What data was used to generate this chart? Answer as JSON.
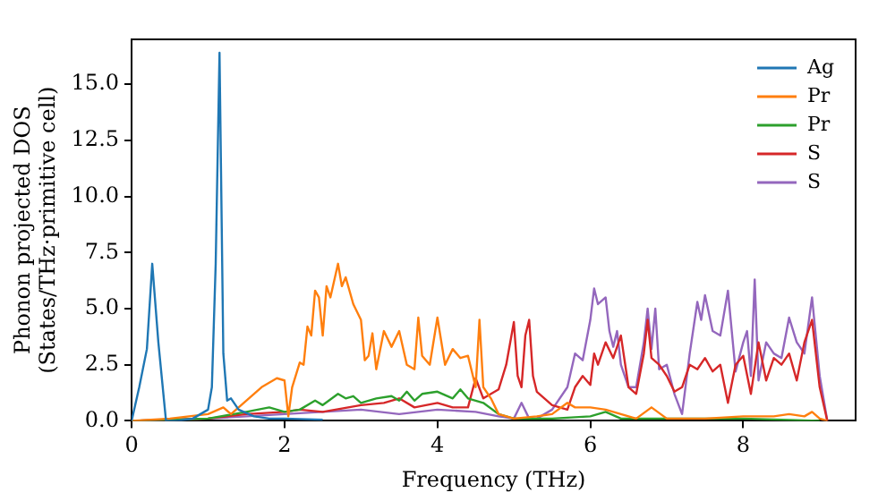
{
  "chart_data": {
    "type": "line",
    "xlabel": "Frequency (THz)",
    "ylabel": "Phonon projected DOS\n(States/THz·primitive cell)",
    "xlim": [
      0,
      9.47
    ],
    "ylim": [
      0,
      17.0
    ],
    "xticks": [
      0,
      2,
      4,
      6,
      8
    ],
    "yticks": [
      {
        "value": 0,
        "label": "0.0"
      },
      {
        "value": 2.5,
        "label": "2.5"
      },
      {
        "value": 5,
        "label": "5.0"
      },
      {
        "value": 7.5,
        "label": "7.5"
      },
      {
        "value": 10,
        "label": "10.0"
      },
      {
        "value": 12.5,
        "label": "12.5"
      },
      {
        "value": 15,
        "label": "15.0"
      }
    ],
    "legend": "top right",
    "grid": false,
    "marker": "none",
    "line_style": "solid",
    "series": [
      {
        "name": "Ag",
        "color": "#1f77b4",
        "x": [
          0,
          0.1,
          0.2,
          0.27,
          0.35,
          0.45,
          0.6,
          0.8,
          1.0,
          1.05,
          1.1,
          1.15,
          1.2,
          1.25,
          1.3,
          1.4,
          1.6,
          1.8,
          2.0,
          2.5
        ],
        "values": [
          0,
          1.5,
          3.2,
          7.0,
          3.5,
          0,
          0,
          0.1,
          0.5,
          1.5,
          7,
          16.4,
          3,
          0.9,
          1.0,
          0.5,
          0.2,
          0.1,
          0.1,
          0.05
        ]
      },
      {
        "name": "Pr",
        "color": "#ff7f0e",
        "x": [
          0,
          0.5,
          1.0,
          1.2,
          1.3,
          1.5,
          1.7,
          1.9,
          2.0,
          2.05,
          2.1,
          2.2,
          2.25,
          2.3,
          2.35,
          2.4,
          2.45,
          2.5,
          2.55,
          2.6,
          2.7,
          2.75,
          2.8,
          2.9,
          3.0,
          3.05,
          3.1,
          3.15,
          3.2,
          3.3,
          3.4,
          3.5,
          3.6,
          3.7,
          3.75,
          3.8,
          3.9,
          4.0,
          4.1,
          4.2,
          4.3,
          4.4,
          4.5,
          4.55,
          4.6,
          4.7,
          4.8,
          5.0,
          5.3,
          5.5,
          5.7,
          5.8,
          6.0,
          6.2,
          6.4,
          6.6,
          6.8,
          7.0,
          7.5,
          8.0,
          8.4,
          8.6,
          8.8,
          8.9,
          9.0,
          9.1
        ],
        "values": [
          0,
          0.1,
          0.3,
          0.6,
          0.3,
          0.9,
          1.5,
          1.9,
          1.8,
          0.2,
          1.5,
          2.6,
          2.5,
          4.2,
          3.8,
          5.8,
          5.5,
          3.8,
          6.0,
          5.5,
          7.0,
          6.0,
          6.4,
          5.2,
          4.5,
          2.7,
          2.9,
          3.9,
          2.3,
          4.0,
          3.3,
          4.0,
          2.5,
          2.3,
          4.6,
          2.9,
          2.5,
          4.6,
          2.5,
          3.2,
          2.8,
          2.9,
          1.5,
          4.5,
          1.5,
          1.0,
          0.3,
          0.1,
          0.2,
          0.3,
          0.8,
          0.6,
          0.6,
          0.5,
          0.3,
          0.1,
          0.6,
          0.1,
          0.1,
          0.2,
          0.2,
          0.3,
          0.2,
          0.4,
          0.1,
          0
        ]
      },
      {
        "name": "Pr",
        "color": "#2ca02c",
        "x": [
          0,
          1,
          1.5,
          1.8,
          2.0,
          2.2,
          2.4,
          2.5,
          2.7,
          2.8,
          2.9,
          3.0,
          3.2,
          3.4,
          3.5,
          3.6,
          3.7,
          3.8,
          4.0,
          4.2,
          4.3,
          4.4,
          4.6,
          4.8,
          5.0,
          5.5,
          6.0,
          6.2,
          6.4,
          7,
          8,
          9
        ],
        "values": [
          0,
          0.1,
          0.4,
          0.6,
          0.4,
          0.5,
          0.9,
          0.7,
          1.2,
          1.0,
          1.1,
          0.8,
          1.0,
          1.1,
          0.9,
          1.3,
          0.9,
          1.2,
          1.3,
          1.0,
          1.4,
          1.0,
          0.8,
          0.3,
          0.1,
          0.1,
          0.2,
          0.4,
          0.1,
          0.1,
          0.1,
          0
        ]
      },
      {
        "name": "S",
        "color": "#d62728",
        "x": [
          0,
          1,
          1.5,
          2.0,
          2.2,
          2.5,
          3.0,
          3.3,
          3.5,
          3.7,
          4.0,
          4.2,
          4.4,
          4.5,
          4.6,
          4.7,
          4.8,
          4.9,
          5.0,
          5.05,
          5.1,
          5.15,
          5.2,
          5.25,
          5.3,
          5.5,
          5.7,
          5.8,
          5.9,
          6.0,
          6.05,
          6.1,
          6.2,
          6.3,
          6.4,
          6.5,
          6.6,
          6.7,
          6.75,
          6.8,
          6.9,
          7.0,
          7.1,
          7.2,
          7.3,
          7.4,
          7.5,
          7.6,
          7.7,
          7.8,
          7.9,
          8.0,
          8.1,
          8.2,
          8.3,
          8.4,
          8.5,
          8.6,
          8.7,
          8.8,
          8.9,
          9.0,
          9.1
        ],
        "values": [
          0,
          0.1,
          0.3,
          0.4,
          0.5,
          0.4,
          0.7,
          0.8,
          1.0,
          0.6,
          0.8,
          0.6,
          0.6,
          1.9,
          1.0,
          1.2,
          1.4,
          2.5,
          4.4,
          2.0,
          1.5,
          3.8,
          4.5,
          2.0,
          1.3,
          0.7,
          0.5,
          1.5,
          2.0,
          1.6,
          3.0,
          2.5,
          3.5,
          2.8,
          3.8,
          1.5,
          1.2,
          3.0,
          4.5,
          2.8,
          2.5,
          2.0,
          1.3,
          1.5,
          2.5,
          2.3,
          2.8,
          2.2,
          2.5,
          0.8,
          2.5,
          2.9,
          1.2,
          3.5,
          1.8,
          2.8,
          2.5,
          3.0,
          1.8,
          3.5,
          4.5,
          1.5,
          0
        ]
      },
      {
        "name": "S",
        "color": "#9467bd",
        "x": [
          0,
          1,
          2,
          2.5,
          3,
          3.5,
          4,
          4.5,
          4.8,
          5.0,
          5.1,
          5.2,
          5.3,
          5.5,
          5.7,
          5.8,
          5.9,
          6.0,
          6.05,
          6.1,
          6.2,
          6.25,
          6.3,
          6.35,
          6.4,
          6.5,
          6.6,
          6.7,
          6.75,
          6.8,
          6.85,
          6.9,
          7.0,
          7.1,
          7.2,
          7.3,
          7.4,
          7.45,
          7.5,
          7.6,
          7.7,
          7.8,
          7.9,
          8.0,
          8.05,
          8.1,
          8.15,
          8.2,
          8.3,
          8.4,
          8.5,
          8.6,
          8.7,
          8.8,
          8.9,
          9.0,
          9.1
        ],
        "values": [
          0,
          0.1,
          0.3,
          0.4,
          0.5,
          0.3,
          0.5,
          0.4,
          0.2,
          0.1,
          0.8,
          0.1,
          0.1,
          0.5,
          1.5,
          3.0,
          2.7,
          4.5,
          5.9,
          5.2,
          5.5,
          4.0,
          3.3,
          4.0,
          2.5,
          1.5,
          1.5,
          3.5,
          5.0,
          3.2,
          5.0,
          2.3,
          2.5,
          1.2,
          0.3,
          3.0,
          5.3,
          4.5,
          5.6,
          4.0,
          3.8,
          5.8,
          2.2,
          3.5,
          4.0,
          2.0,
          6.3,
          1.8,
          3.5,
          3.0,
          2.8,
          4.6,
          3.5,
          3.0,
          5.5,
          2.0,
          0
        ]
      }
    ]
  }
}
